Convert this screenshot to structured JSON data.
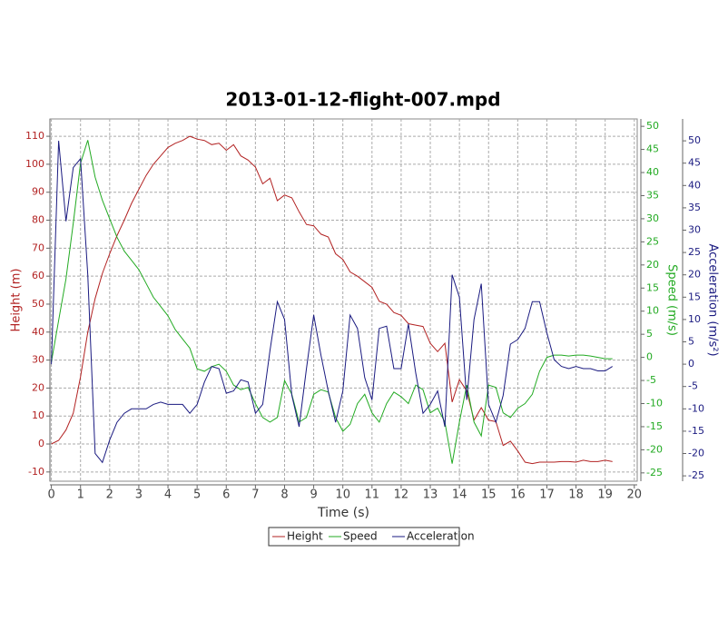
{
  "chart_data": {
    "type": "line",
    "title": "2013-01-12-flight-007.mpd",
    "xlabel": "Time (s)",
    "ylabel": "Height (m)",
    "y2label": "Speed (m/s)",
    "y3label": "Acceleration (m/s²)",
    "x": [
      0,
      0.25,
      0.5,
      0.75,
      1,
      1.25,
      1.5,
      1.75,
      2,
      2.25,
      2.5,
      2.75,
      3,
      3.25,
      3.5,
      3.75,
      4,
      4.25,
      4.5,
      4.75,
      5,
      5.25,
      5.5,
      5.75,
      6,
      6.25,
      6.5,
      6.75,
      7,
      7.25,
      7.5,
      7.75,
      8,
      8.25,
      8.5,
      8.75,
      9,
      9.25,
      9.5,
      9.75,
      10,
      10.25,
      10.5,
      10.75,
      11,
      11.25,
      11.5,
      11.75,
      12,
      12.25,
      12.5,
      12.75,
      13,
      13.25,
      13.5,
      13.75,
      14,
      14.25,
      14.5,
      14.75,
      15,
      15.25,
      15.5,
      15.75,
      16,
      16.25,
      16.5,
      16.75,
      17,
      17.25,
      17.5,
      17.75,
      18,
      18.25,
      18.5,
      18.75,
      19,
      19.25
    ],
    "series": [
      {
        "name": "Height",
        "color": "#b22222",
        "axis": "y",
        "values": [
          0,
          1.3,
          5,
          11,
          24,
          40,
          52,
          61,
          68,
          74.5,
          80,
          86,
          91,
          96,
          100,
          103,
          106,
          107.5,
          108.5,
          110,
          109,
          108.5,
          107,
          107.5,
          105,
          107,
          103,
          101.5,
          99,
          93,
          95,
          87,
          89,
          88,
          83,
          78.5,
          78,
          75,
          74,
          68,
          66,
          61.5,
          60,
          58,
          56,
          51,
          50,
          47,
          46,
          43,
          42.5,
          42,
          36,
          33,
          36,
          15,
          23,
          19,
          8.5,
          13,
          8.5,
          8,
          -0.5,
          1,
          -2.5,
          -6.5,
          -7,
          -6.5,
          -6.5,
          -6.5,
          -6.3,
          -6.3,
          -6.5,
          -5.8,
          -6.3,
          -6.3,
          -5.8,
          -6.3
        ]
      },
      {
        "name": "Speed",
        "color": "#22aa22",
        "axis": "y2",
        "values": [
          -1,
          8,
          17,
          29,
          42,
          47,
          39,
          34,
          30,
          26,
          23,
          21,
          19,
          16,
          13,
          11,
          9,
          6,
          4,
          2,
          -2.5,
          -3,
          -2,
          -1.5,
          -3,
          -6,
          -7,
          -6.5,
          -10,
          -13,
          -14,
          -13,
          -5,
          -8,
          -14,
          -13,
          -8,
          -7,
          -7.5,
          -13,
          -16,
          -14.5,
          -10,
          -8,
          -12,
          -14,
          -10,
          -7.5,
          -8.5,
          -10,
          -6,
          -7,
          -12,
          -11,
          -14,
          -23,
          -14,
          -6,
          -14,
          -17,
          -6,
          -6.5,
          -12,
          -13,
          -11,
          -10,
          -8,
          -3,
          0,
          0.5,
          0.5,
          0.3,
          0.5,
          0.5,
          0.3,
          0,
          -0.3,
          -0.3
        ]
      },
      {
        "name": "Acceleration",
        "color": "#1a1a80",
        "axis": "y3",
        "values": [
          0,
          50,
          32,
          44,
          46,
          20,
          -20,
          -22,
          -17,
          -13,
          -11,
          -10,
          -10,
          -10,
          -9,
          -8.5,
          -9,
          -9,
          -9,
          -11,
          -9,
          -4,
          -0.5,
          -1,
          -6.5,
          -6,
          -3.5,
          -4,
          -11,
          -9,
          3,
          14,
          10,
          -7,
          -14,
          -1,
          11,
          2,
          -6,
          -13,
          -6,
          11,
          8,
          -3,
          -8,
          8,
          8.5,
          -1,
          -1,
          9,
          -2,
          -11,
          -9,
          -6,
          -14,
          20,
          15,
          -8,
          10,
          18,
          -9,
          -13,
          -7,
          4.5,
          5.5,
          8,
          14,
          14,
          7,
          1,
          -0.5,
          -1,
          -0.5,
          -1,
          -1,
          -1.5,
          -1.5,
          -0.5
        ]
      }
    ],
    "xlim": [
      -0.05,
      20.1
    ],
    "xticks": [
      0,
      1,
      2,
      3,
      4,
      5,
      6,
      7,
      8,
      9,
      10,
      11,
      12,
      13,
      14,
      15,
      16,
      17,
      18,
      19,
      20
    ],
    "ylim": [
      -13.3,
      116.2
    ],
    "yticks": [
      -10,
      0,
      10,
      20,
      30,
      40,
      50,
      60,
      70,
      80,
      90,
      100,
      110
    ],
    "y2lim": [
      -26.8,
      51.6
    ],
    "y2ticks": [
      -25,
      -20,
      -15,
      -10,
      -5,
      0,
      5,
      10,
      15,
      20,
      25,
      30,
      35,
      40,
      45,
      50
    ],
    "y3lim": [
      -26.2,
      54.9
    ],
    "y3ticks": [
      -25,
      -20,
      -15,
      -10,
      -5,
      0,
      5,
      10,
      15,
      20,
      25,
      30,
      35,
      40,
      45,
      50
    ],
    "grid": true,
    "legend": "bottom"
  }
}
